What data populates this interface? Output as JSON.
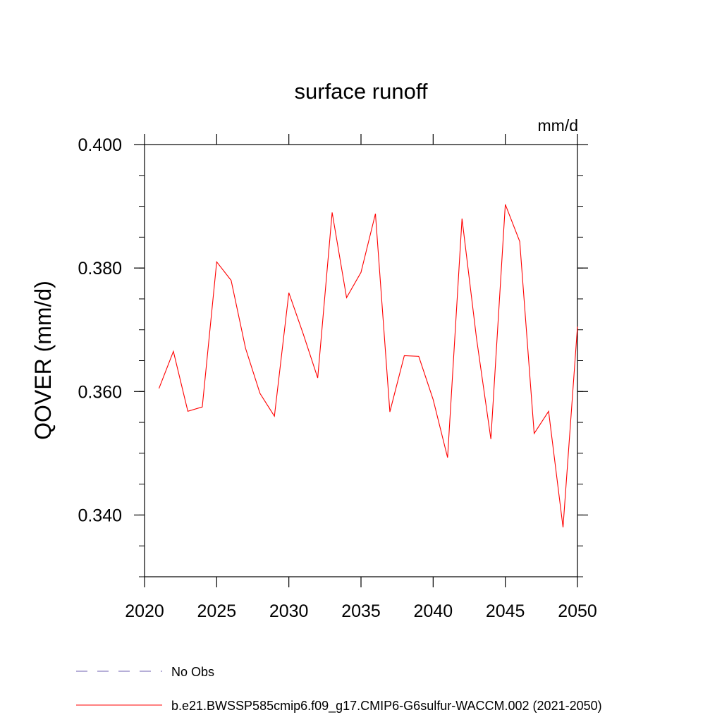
{
  "chart_data": {
    "type": "line",
    "title": "surface runoff",
    "units": "mm/d",
    "ylabel": "QOVER  (mm/d)",
    "xlabel": "",
    "xlim": [
      2020,
      2050
    ],
    "ylim": [
      0.33,
      0.4
    ],
    "x_ticks": [
      2020,
      2025,
      2030,
      2035,
      2040,
      2045,
      2050
    ],
    "x_tick_labels": [
      "2020",
      "2025",
      "2030",
      "2035",
      "2040",
      "2045",
      "2050"
    ],
    "y_ticks": [
      0.34,
      0.36,
      0.38,
      0.4
    ],
    "y_tick_labels": [
      "0.340",
      "0.360",
      "0.380",
      "0.400"
    ],
    "grid": false,
    "legend_position": "bottom",
    "series": [
      {
        "name": "b.e21.BWSSP585cmip6.f09_g17.CMIP6-G6sulfur-WACCM.002 (2021-2050)",
        "color": "#ff0000",
        "style": "solid",
        "x": [
          2021,
          2022,
          2023,
          2024,
          2025,
          2026,
          2027,
          2028,
          2029,
          2030,
          2031,
          2032,
          2033,
          2034,
          2035,
          2036,
          2037,
          2038,
          2039,
          2040,
          2041,
          2042,
          2043,
          2044,
          2045,
          2046,
          2047,
          2048,
          2049,
          2050
        ],
        "values": [
          0.3605,
          0.3665,
          0.3568,
          0.3575,
          0.381,
          0.378,
          0.367,
          0.3597,
          0.356,
          0.376,
          0.3693,
          0.3622,
          0.389,
          0.3752,
          0.3793,
          0.3888,
          0.3567,
          0.3658,
          0.3657,
          0.3587,
          0.3493,
          0.388,
          0.3687,
          0.3523,
          0.3903,
          0.3843,
          0.3532,
          0.3568,
          0.338,
          0.3705
        ]
      },
      {
        "name": "No Obs",
        "color": "#6e5fb0",
        "style": "dashed",
        "x": [],
        "values": []
      }
    ]
  }
}
